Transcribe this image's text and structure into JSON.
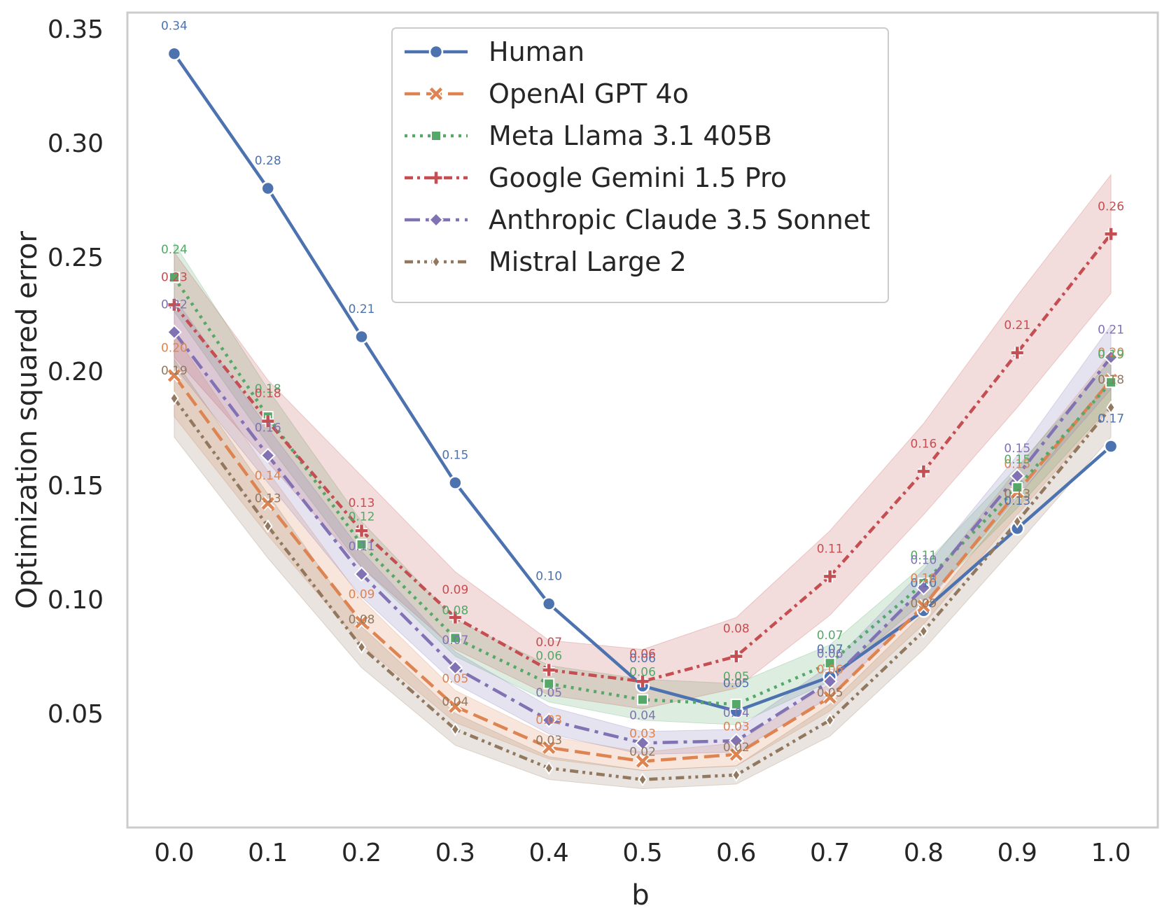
{
  "chart_data": {
    "type": "line",
    "title": "",
    "xlabel": "b",
    "ylabel": "Optimization squared error",
    "x": [
      0.0,
      0.1,
      0.2,
      0.3,
      0.4,
      0.5,
      0.6,
      0.7,
      0.8,
      0.9,
      1.0
    ],
    "x_tick_labels": [
      "0.0",
      "0.1",
      "0.2",
      "0.3",
      "0.4",
      "0.5",
      "0.6",
      "0.7",
      "0.8",
      "0.9",
      "1.0"
    ],
    "y_ticks": [
      0.05,
      0.1,
      0.15,
      0.2,
      0.25,
      0.3,
      0.35
    ],
    "y_tick_labels": [
      "0.05",
      "0.10",
      "0.15",
      "0.20",
      "0.25",
      "0.30",
      "0.35"
    ],
    "ylim": [
      0.0,
      0.357
    ],
    "xlim": [
      -0.05,
      1.05
    ],
    "grid": false,
    "legend_position": "top-center",
    "series": [
      {
        "name": "Human",
        "color": "#4c72b0",
        "dash": "solid",
        "marker": "circle",
        "values": [
          0.339,
          0.28,
          0.215,
          0.151,
          0.098,
          0.062,
          0.051,
          0.066,
          0.095,
          0.131,
          0.167
        ],
        "labels": [
          "0.34",
          "0.28",
          "0.21",
          "0.15",
          "0.10",
          "0.06",
          "0.05",
          "0.07",
          "0.10",
          "0.13",
          "0.17"
        ]
      },
      {
        "name": "OpenAI GPT 4o",
        "color": "#dd8452",
        "dash": "dashed",
        "marker": "x",
        "values": [
          0.198,
          0.142,
          0.09,
          0.053,
          0.035,
          0.029,
          0.032,
          0.057,
          0.097,
          0.147,
          0.196
        ],
        "band": [
          [
            0.18,
            0.216
          ],
          [
            0.128,
            0.156
          ],
          [
            0.08,
            0.1
          ],
          [
            0.046,
            0.06
          ],
          [
            0.03,
            0.04
          ],
          [
            0.025,
            0.033
          ],
          [
            0.027,
            0.037
          ],
          [
            0.051,
            0.063
          ],
          [
            0.089,
            0.105
          ],
          [
            0.137,
            0.157
          ],
          [
            0.184,
            0.208
          ]
        ],
        "labels": [
          "0.20",
          "0.14",
          "0.09",
          "0.05",
          "0.03",
          "0.03",
          "0.03",
          "0.06",
          "0.10",
          "0.15",
          "0.20"
        ]
      },
      {
        "name": "Meta Llama 3.1 405B",
        "color": "#55a868",
        "dash": "dotted",
        "marker": "square",
        "values": [
          0.241,
          0.18,
          0.124,
          0.083,
          0.063,
          0.056,
          0.054,
          0.072,
          0.107,
          0.149,
          0.195
        ],
        "band": [
          [
            0.226,
            0.256
          ],
          [
            0.168,
            0.192
          ],
          [
            0.114,
            0.134
          ],
          [
            0.075,
            0.091
          ],
          [
            0.055,
            0.071
          ],
          [
            0.047,
            0.065
          ],
          [
            0.045,
            0.063
          ],
          [
            0.064,
            0.08
          ],
          [
            0.099,
            0.115
          ],
          [
            0.14,
            0.158
          ],
          [
            0.185,
            0.205
          ]
        ],
        "labels": [
          "0.24",
          "0.18",
          "0.12",
          "0.08",
          "0.06",
          "0.06",
          "0.05",
          "0.07",
          "0.11",
          "0.15",
          "0.19"
        ]
      },
      {
        "name": "Google Gemini 1.5 Pro",
        "color": "#c44e52",
        "dash": "dashdot-short",
        "marker": "plus",
        "values": [
          0.229,
          0.178,
          0.13,
          0.092,
          0.069,
          0.064,
          0.075,
          0.11,
          0.156,
          0.208,
          0.26
        ],
        "band": [
          [
            0.206,
            0.252
          ],
          [
            0.16,
            0.196
          ],
          [
            0.114,
            0.154
          ],
          [
            0.078,
            0.112
          ],
          [
            0.058,
            0.082
          ],
          [
            0.052,
            0.078
          ],
          [
            0.061,
            0.092
          ],
          [
            0.093,
            0.13
          ],
          [
            0.137,
            0.177
          ],
          [
            0.184,
            0.233
          ],
          [
            0.234,
            0.286
          ]
        ],
        "labels": [
          "0.23",
          "0.18",
          "0.13",
          "0.09",
          "0.07",
          "0.06",
          "0.08",
          "0.11",
          "0.16",
          "0.21",
          "0.26"
        ]
      },
      {
        "name": "Anthropic Claude 3.5 Sonnet",
        "color": "#8172b3",
        "dash": "dashdot",
        "marker": "diamond",
        "values": [
          0.217,
          0.163,
          0.111,
          0.07,
          0.047,
          0.037,
          0.038,
          0.064,
          0.105,
          0.154,
          0.206
        ],
        "band": [
          [
            0.202,
            0.232
          ],
          [
            0.151,
            0.175
          ],
          [
            0.101,
            0.121
          ],
          [
            0.063,
            0.077
          ],
          [
            0.041,
            0.053
          ],
          [
            0.032,
            0.042
          ],
          [
            0.033,
            0.043
          ],
          [
            0.057,
            0.071
          ],
          [
            0.097,
            0.113
          ],
          [
            0.145,
            0.163
          ],
          [
            0.192,
            0.22
          ]
        ],
        "labels": [
          "0.22",
          "0.16",
          "0.11",
          "0.07",
          "0.05",
          "0.04",
          "0.04",
          "0.06",
          "0.10",
          "0.15",
          "0.21"
        ]
      },
      {
        "name": "Mistral Large 2",
        "color": "#937860",
        "dash": "dashdotdot",
        "marker": "thin-diamond",
        "values": [
          0.188,
          0.132,
          0.079,
          0.043,
          0.026,
          0.021,
          0.023,
          0.047,
          0.086,
          0.134,
          0.184
        ],
        "band": [
          [
            0.171,
            0.205
          ],
          [
            0.118,
            0.146
          ],
          [
            0.07,
            0.088
          ],
          [
            0.036,
            0.05
          ],
          [
            0.021,
            0.031
          ],
          [
            0.017,
            0.025
          ],
          [
            0.019,
            0.027
          ],
          [
            0.04,
            0.054
          ],
          [
            0.078,
            0.094
          ],
          [
            0.124,
            0.144
          ],
          [
            0.171,
            0.197
          ]
        ],
        "labels": [
          "0.19",
          "0.13",
          "0.08",
          "0.04",
          "0.03",
          "0.02",
          "0.02",
          "0.05",
          "0.09",
          "0.13",
          "0.18"
        ]
      }
    ]
  }
}
